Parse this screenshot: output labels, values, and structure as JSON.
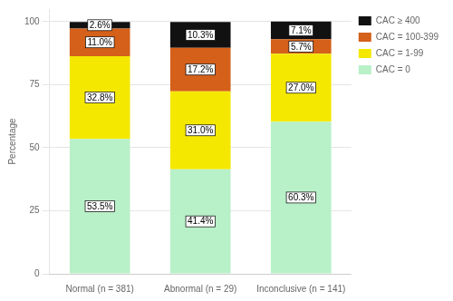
{
  "chart_data": {
    "type": "bar",
    "categories": [
      "Normal (n = 381)",
      "Abnormal (n = 29)",
      "Inconclusive (n = 141)"
    ],
    "series": [
      {
        "name": "CAC = 0",
        "color": "#b8f0c8",
        "values": [
          53.5,
          41.4,
          60.3
        ],
        "value_labels": [
          "53.5%",
          "41.4%",
          "60.3%"
        ]
      },
      {
        "name": "CAC = 1-99",
        "color": "#f5e800",
        "values": [
          32.8,
          31.0,
          27.0
        ],
        "value_labels": [
          "32.8%",
          "31.0%",
          "27.0%"
        ]
      },
      {
        "name": "CAC = 100-399",
        "color": "#d4601a",
        "values": [
          11.0,
          17.2,
          5.7
        ],
        "value_labels": [
          "11.0%",
          "17.2%",
          "5.7%"
        ]
      },
      {
        "name": "CAC ≥ 400",
        "color": "#111111",
        "values": [
          2.6,
          10.3,
          7.1
        ],
        "value_labels": [
          "2.6%",
          "10.3%",
          "7.1%"
        ]
      }
    ],
    "ylabel": "Percentage",
    "ylim": [
      0,
      105
    ],
    "yticks": [
      0,
      25,
      50,
      75,
      100
    ],
    "stacked": true,
    "grid": true,
    "legend": "right",
    "data_labels": true
  }
}
